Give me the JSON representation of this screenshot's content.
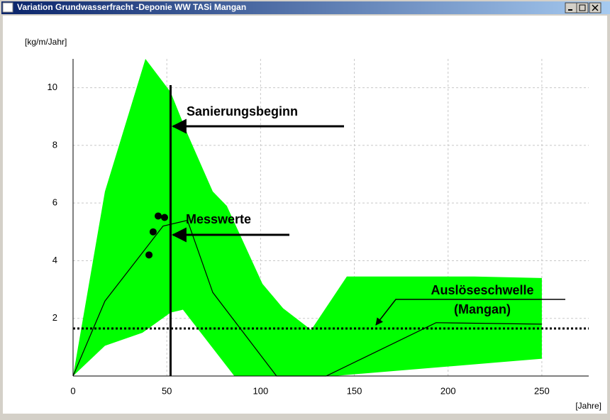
{
  "window": {
    "title": "Variation Grundwasserfracht -Deponie WW TASi Mangan"
  },
  "chart_data": {
    "type": "line",
    "x_label": "[Jahre]",
    "y_label": "[kg/m/Jahr]",
    "xlim": [
      0,
      275
    ],
    "ylim": [
      0,
      11
    ],
    "xticks": [
      0,
      50,
      100,
      150,
      200,
      250
    ],
    "yticks": [
      2,
      4,
      6,
      8,
      10
    ],
    "grid": true,
    "band": {
      "color": "#00ff00",
      "upper": {
        "x": [
          0,
          17,
          38.6,
          52,
          61,
          74.5,
          82,
          101,
          112,
          127,
          146,
          214,
          250
        ],
        "values": [
          0,
          6.4,
          11,
          9.85,
          8.4,
          6.4,
          5.9,
          3.2,
          2.35,
          1.6,
          3.45,
          3.45,
          3.4
        ]
      },
      "lower": {
        "x": [
          0,
          17,
          37,
          52,
          58.6,
          86,
          139,
          250
        ],
        "values": [
          0,
          1.05,
          1.5,
          2.2,
          2.3,
          0,
          0,
          0.6
        ]
      }
    },
    "series": [
      {
        "color": "#000000",
        "x": [
          0,
          17,
          48,
          61,
          74.5,
          108.5,
          135,
          193.6,
          250
        ],
        "values": [
          0,
          2.6,
          5.2,
          5.4,
          2.9,
          0,
          0,
          1.85,
          1.8
        ]
      }
    ],
    "points": {
      "color": "#000000",
      "x": [
        45.4,
        48.8,
        42.7,
        40.5
      ],
      "values": [
        5.55,
        5.5,
        5.0,
        4.2
      ]
    },
    "hline": {
      "value": 1.65,
      "style": "dotted"
    },
    "vline": {
      "value": 52
    },
    "annotations": [
      "Sanierungsbeginn",
      "Messwerte",
      "Auslöseschwelle",
      "(Mangan)"
    ]
  }
}
